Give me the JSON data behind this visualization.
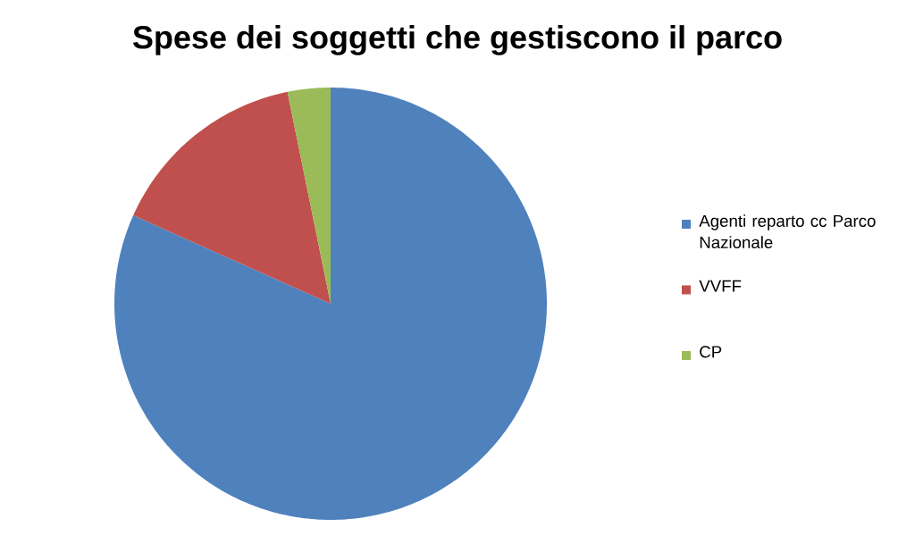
{
  "chart_data": {
    "type": "pie",
    "title": "Spese dei soggetti che gestiscono il parco",
    "categories": [
      "Agenti reparto cc Parco Nazionale",
      "VVFF",
      "CP"
    ],
    "values": [
      81.7,
      15.1,
      3.2
    ],
    "colors": [
      "#4f81bd",
      "#c0504d",
      "#9bbb59"
    ],
    "legend": "right"
  }
}
